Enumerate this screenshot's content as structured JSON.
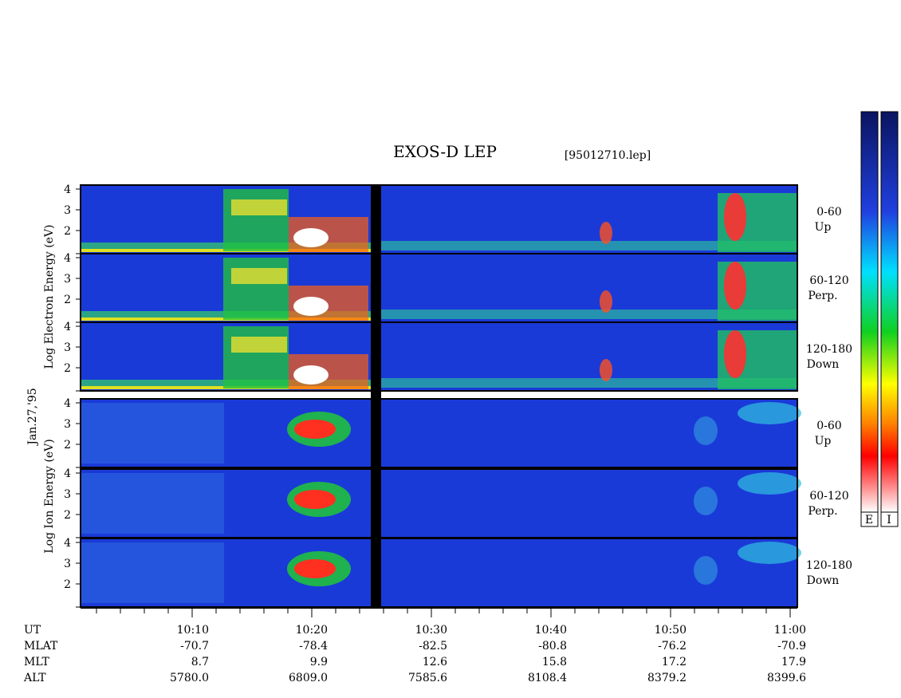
{
  "title": "EXOS-D LEP",
  "file": "[95012710.lep]",
  "date": "Jan.27,'95",
  "colorbar": {
    "labels": [
      "E",
      "I"
    ]
  },
  "groups": [
    {
      "label": "Log   Electron   Energy (eV)",
      "panels": [
        {
          "range": "0-60",
          "dir": "Up",
          "yticks": [
            "4",
            "3",
            "2"
          ]
        },
        {
          "range": "60-120",
          "dir": "Perp.",
          "yticks": [
            "4",
            "3",
            "2"
          ]
        },
        {
          "range": "120-180",
          "dir": "Down",
          "yticks": [
            "4",
            "3",
            "2"
          ]
        }
      ]
    },
    {
      "label": "Log   Ion   Energy (eV)",
      "panels": [
        {
          "range": "0-60",
          "dir": "Up",
          "yticks": [
            "4",
            "3",
            "2"
          ]
        },
        {
          "range": "60-120",
          "dir": "Perp.",
          "yticks": [
            "4",
            "3",
            "2"
          ]
        },
        {
          "range": "120-180",
          "dir": "Down",
          "yticks": [
            "4",
            "3",
            "2"
          ]
        }
      ]
    }
  ],
  "ephemeris": {
    "rows": [
      {
        "name": "UT",
        "values": [
          "10:10",
          "10:20",
          "10:30",
          "10:40",
          "10:50",
          "11:00"
        ]
      },
      {
        "name": "MLAT",
        "values": [
          "-70.7",
          "-78.4",
          "-82.5",
          "-80.8",
          "-76.2",
          "-70.9"
        ]
      },
      {
        "name": "MLT",
        "values": [
          "8.7",
          "9.9",
          "12.6",
          "15.8",
          "17.2",
          "17.9"
        ]
      },
      {
        "name": "ALT",
        "values": [
          "5780.0",
          "6809.0",
          "7585.6",
          "8108.4",
          "8379.2",
          "8399.6"
        ]
      }
    ]
  }
}
